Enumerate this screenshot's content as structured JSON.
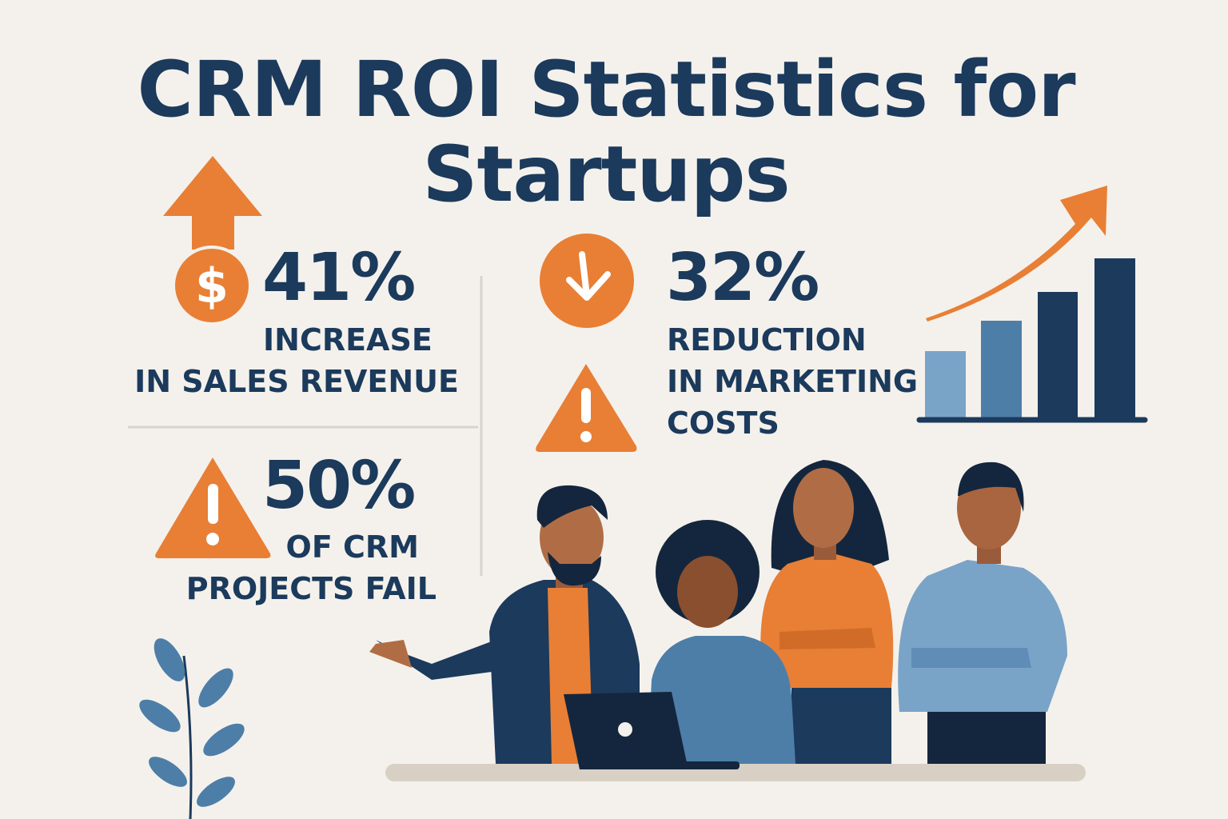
{
  "title": {
    "line1": "CRM ROI Statistics for",
    "line2": "Startups"
  },
  "stats": [
    {
      "value": "41%",
      "line1": "INCREASE",
      "line2": "IN SALES REVENUE",
      "icon": "dollar-up-arrow-icon"
    },
    {
      "value": "32%",
      "line1": "REDUCTION",
      "line2": "IN MARKETING",
      "line3": "COSTS",
      "icon": "down-arrow-circle-icon"
    },
    {
      "value": "50%",
      "line1": "OF CRM",
      "line2": "PROJECTS FAIL",
      "icon": "warning-triangle-icon"
    }
  ],
  "colors": {
    "navy": "#1b3a5c",
    "orange": "#e87f35",
    "background": "#f4f1ec",
    "light_blue": "#7aa3c8"
  }
}
